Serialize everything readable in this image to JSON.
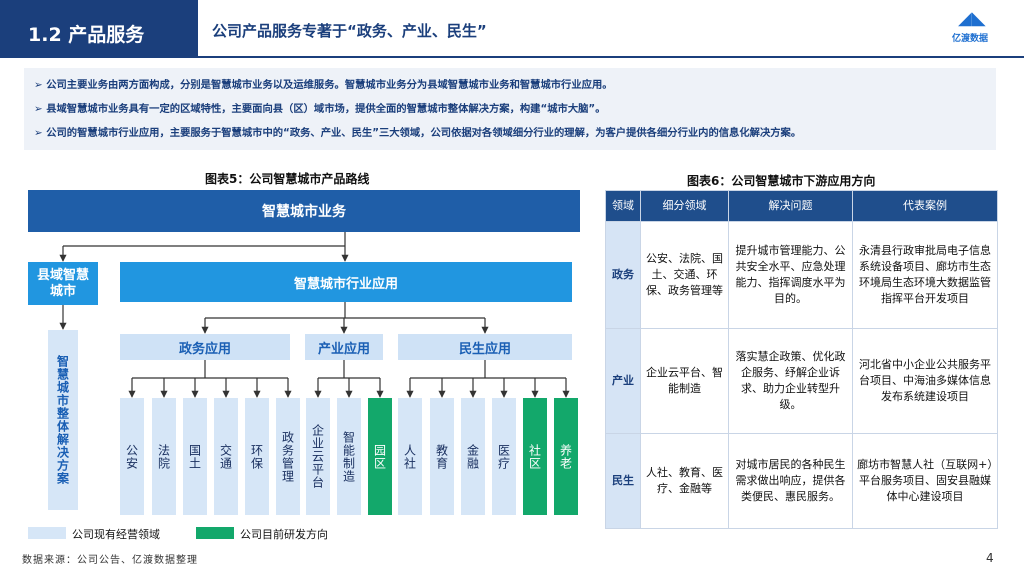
{
  "header": {
    "section": "1.2 产品服务",
    "title": "公司产品服务专著于“政务、产业、民生”",
    "logo": "亿渡数据"
  },
  "bullets": [
    "公司主要业务由两方面构成，分别是智慧城市业务以及运维服务。智慧城市业务分为县域智慧城市业务和智慧城市行业应用。",
    "县域智慧城市业务具有一定的区域特性，主要面向县（区）域市场，提供全面的智慧城市整体解决方案，构建“城市大脑”。",
    "公司的智慧城市行业应用，主要服务于智慧城市中的“政务、产业、民生”三大领域，公司依据对各领域细分行业的理解，为客户提供各细分行业内的信息化解决方案。"
  ],
  "figure5": {
    "title": "图表5：公司智慧城市产品路线",
    "top": "智慧城市业务",
    "county": "县域智慧城市",
    "industry": "智慧城市行业应用",
    "county_solution": "智慧城市整体解决方案",
    "groups": [
      {
        "label": "政务应用",
        "items": [
          "公安",
          "法院",
          "国土",
          "交通",
          "环保",
          "政务管理"
        ]
      },
      {
        "label": "产业应用",
        "items": [
          "企业云平台",
          "智能制造",
          "园区"
        ]
      },
      {
        "label": "民生应用",
        "items": [
          "人社",
          "教育",
          "金融",
          "医疗",
          "社区",
          "养老"
        ]
      }
    ],
    "legend": [
      "公司现有经营领域",
      "公司目前研发方向"
    ]
  },
  "figure6": {
    "title": "图表6：公司智慧城市下游应用方向",
    "header": [
      "领域",
      "细分领域",
      "解决问题",
      "代表案例"
    ],
    "rows": [
      [
        "政务",
        "公安、法院、国土、交通、环保、政务管理等",
        "提升城市管理能力、公共安全水平、应急处理能力、指挥调度水平为目的。",
        "永清县行政审批局电子信息系统设备项目、廊坊市生态环境局生态环境大数据监管指挥平台开发项目"
      ],
      [
        "产业",
        "企业云平台、智能制造",
        "落实慧企政策、优化政企服务、纾解企业诉求、助力企业转型升级。",
        "河北省中小企业公共服务平台项目、中海油多媒体信息发布系统建设项目"
      ],
      [
        "民生",
        "人社、教育、医疗、金融等",
        "对城市居民的各种民生需求做出响应，提供各类便民、惠民服务。",
        "廊坊市智慧人社（互联网+）平台服务项目、固安县融媒体中心建设项目"
      ]
    ]
  },
  "footer": {
    "source": "数据来源：公司公告、亿渡数据整理",
    "page": "4"
  }
}
